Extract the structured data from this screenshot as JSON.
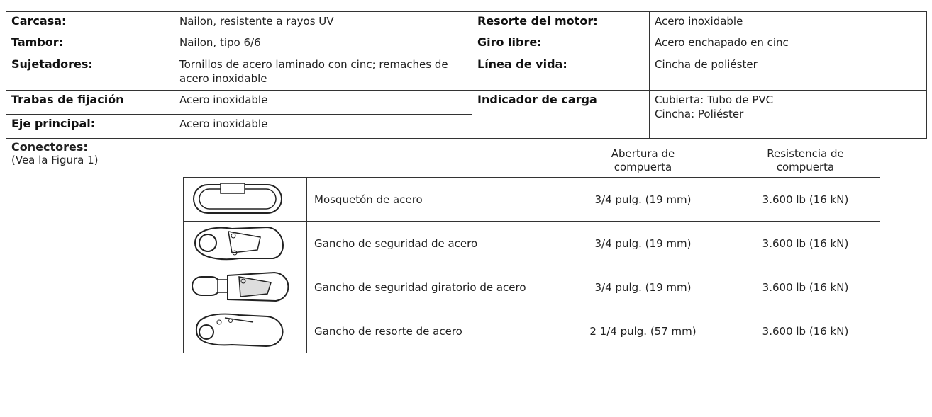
{
  "specs": {
    "left": [
      {
        "label": "Carcasa:",
        "value": "Nailon, resistente a rayos UV"
      },
      {
        "label": "Tambor:",
        "value": "Nailon, tipo 6/6"
      },
      {
        "label": "Sujetadores:",
        "value": "Tornillos de acero laminado con cinc; remaches de acero inoxidable"
      },
      {
        "label": "Trabas de fijación",
        "value": "Acero inoxidable"
      },
      {
        "label": "Eje principal:",
        "value": "Acero inoxidable"
      }
    ],
    "right": [
      {
        "label": "Resorte del motor:",
        "value": "Acero inoxidable"
      },
      {
        "label": "Giro libre:",
        "value": "Acero enchapado en cinc"
      },
      {
        "label": "Línea de vida:",
        "value": "Cincha de poliéster"
      },
      {
        "label": "Indicador de carga",
        "value": [
          "Cubierta: Tubo de PVC",
          "Cincha: Poliéster"
        ]
      }
    ]
  },
  "connectors": {
    "label": "Conectores:",
    "note": "(Vea la Figura 1)",
    "columns": [
      "Abertura de compuerta",
      "Resistencia de compuerta"
    ],
    "items": [
      {
        "name": "Mosquetón de acero",
        "gate_opening": "3/4 pulg. (19 mm)",
        "gate_strength": "3.600 lb (16 kN)"
      },
      {
        "name": "Gancho de seguridad de acero",
        "gate_opening": "3/4 pulg. (19 mm)",
        "gate_strength": "3.600 lb (16 kN)"
      },
      {
        "name": "Gancho de seguridad giratorio de acero",
        "gate_opening": "3/4 pulg. (19 mm)",
        "gate_strength": "3.600 lb (16 kN)"
      },
      {
        "name": "Gancho de resorte de acero",
        "gate_opening": "2 1/4 pulg. (57 mm)",
        "gate_strength": "3.600 lb (16 kN)"
      }
    ]
  }
}
